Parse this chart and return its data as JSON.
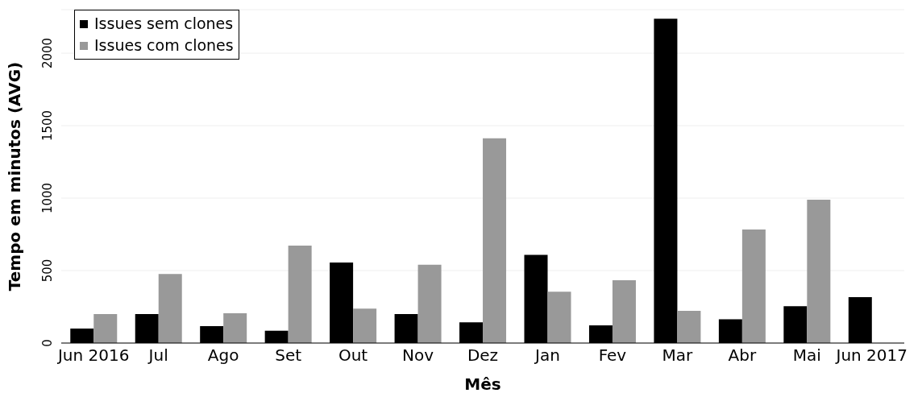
{
  "chart_data": {
    "type": "bar",
    "xlabel": "Mês",
    "ylabel": "Tempo em minutos (AVG)",
    "categories": [
      "Jun 2016",
      "Jul",
      "Ago",
      "Set",
      "Out",
      "Nov",
      "Dez",
      "Jan",
      "Fev",
      "Mar",
      "Abr",
      "Mai",
      "Jun 2017"
    ],
    "series": [
      {
        "name": "Issues sem clones",
        "color": "#000000",
        "values": [
          100,
          200,
          116,
          85,
          555,
          200,
          143,
          608,
          122,
          2238,
          164,
          254,
          317
        ]
      },
      {
        "name": "Issues com clones",
        "color": "#999999",
        "values": [
          200,
          476,
          206,
          672,
          238,
          540,
          1412,
          354,
          434,
          222,
          783,
          989,
          null
        ]
      }
    ],
    "ylim": [
      0,
      2300
    ],
    "yticks": [
      0,
      500,
      1000,
      1500,
      2000
    ],
    "grid": "y",
    "legend": "top left"
  }
}
